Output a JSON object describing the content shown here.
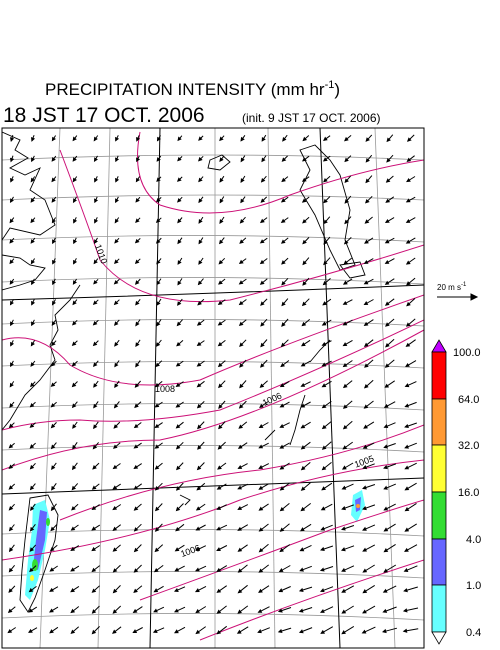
{
  "title": {
    "text": "PRECIPITATION INTENSITY (mm hr",
    "exponent": "-1",
    "close": ")"
  },
  "valid_time": "18 JST 17 OCT. 2006",
  "init_time": "(init. 9 JST 17 OCT. 2006)",
  "isobar_labels": [
    "1010",
    "1008",
    "1006",
    "1005",
    "1006"
  ],
  "wind_reference": {
    "text": "20 m s",
    "exponent": "-1"
  },
  "colorbar": {
    "labels": [
      "100.0",
      "64.0",
      "32.0",
      "16.0",
      "4.0",
      "1.0",
      "0.4"
    ]
  }
}
